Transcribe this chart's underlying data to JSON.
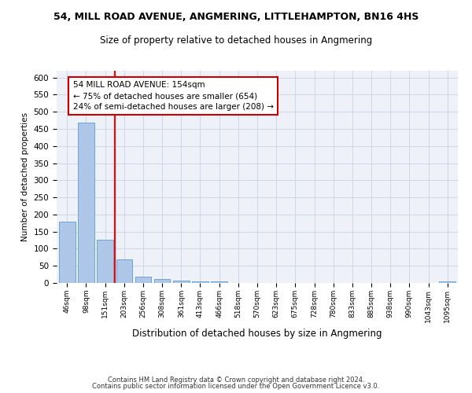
{
  "title": "54, MILL ROAD AVENUE, ANGMERING, LITTLEHAMPTON, BN16 4HS",
  "subtitle": "Size of property relative to detached houses in Angmering",
  "xlabel": "Distribution of detached houses by size in Angmering",
  "ylabel": "Number of detached properties",
  "footer_line1": "Contains HM Land Registry data © Crown copyright and database right 2024.",
  "footer_line2": "Contains public sector information licensed under the Open Government Licence v3.0.",
  "categories": [
    "46sqm",
    "98sqm",
    "151sqm",
    "203sqm",
    "256sqm",
    "308sqm",
    "361sqm",
    "413sqm",
    "466sqm",
    "518sqm",
    "570sqm",
    "623sqm",
    "675sqm",
    "728sqm",
    "780sqm",
    "833sqm",
    "885sqm",
    "938sqm",
    "990sqm",
    "1043sqm",
    "1095sqm"
  ],
  "values": [
    180,
    469,
    127,
    70,
    18,
    11,
    7,
    5,
    5,
    0,
    0,
    0,
    0,
    0,
    0,
    0,
    0,
    0,
    0,
    0,
    5
  ],
  "bar_color": "#aec6e8",
  "bar_edge_color": "#5b9bd5",
  "grid_color": "#d0d8e8",
  "background_color": "#eef2f8",
  "red_line_index": 2,
  "annotation_text": "54 MILL ROAD AVENUE: 154sqm\n← 75% of detached houses are smaller (654)\n24% of semi-detached houses are larger (208) →",
  "annotation_box_color": "#ffffff",
  "annotation_border_color": "#cc0000",
  "ylim": [
    0,
    620
  ],
  "yticks": [
    0,
    50,
    100,
    150,
    200,
    250,
    300,
    350,
    400,
    450,
    500,
    550,
    600
  ]
}
